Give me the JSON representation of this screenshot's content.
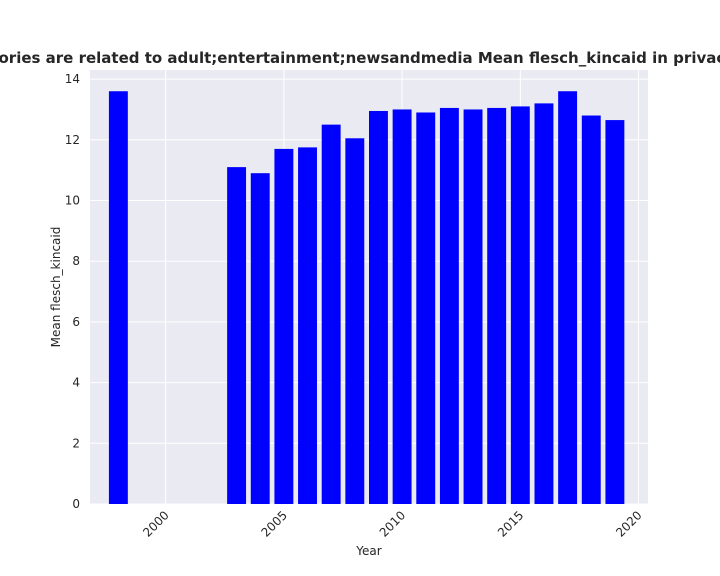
{
  "chart_data": {
    "type": "bar",
    "title": "Categories are related to adult;entertainment;newsandmedia Mean flesch_kincaid in privacy policies",
    "xlabel": "Year",
    "ylabel": "Mean flesch_kincaid",
    "x": [
      1998,
      2003,
      2004,
      2005,
      2006,
      2007,
      2008,
      2009,
      2010,
      2011,
      2012,
      2013,
      2014,
      2015,
      2016,
      2017,
      2018,
      2019
    ],
    "values": [
      13.6,
      11.1,
      10.9,
      11.7,
      11.75,
      12.5,
      12.05,
      12.95,
      13.0,
      12.9,
      13.05,
      13.0,
      13.05,
      13.1,
      13.2,
      13.6,
      12.8,
      12.65
    ],
    "xlim": [
      1996.8,
      2020.4
    ],
    "ylim": [
      0,
      14.3
    ],
    "x_ticks": [
      2000,
      2005,
      2010,
      2015,
      2020
    ],
    "y_ticks": [
      0,
      2,
      4,
      6,
      8,
      10,
      12,
      14
    ],
    "bar_color": "#0000ff",
    "plot_background": "#eaeaf2",
    "grid_color": "#ffffff",
    "grid": true
  }
}
